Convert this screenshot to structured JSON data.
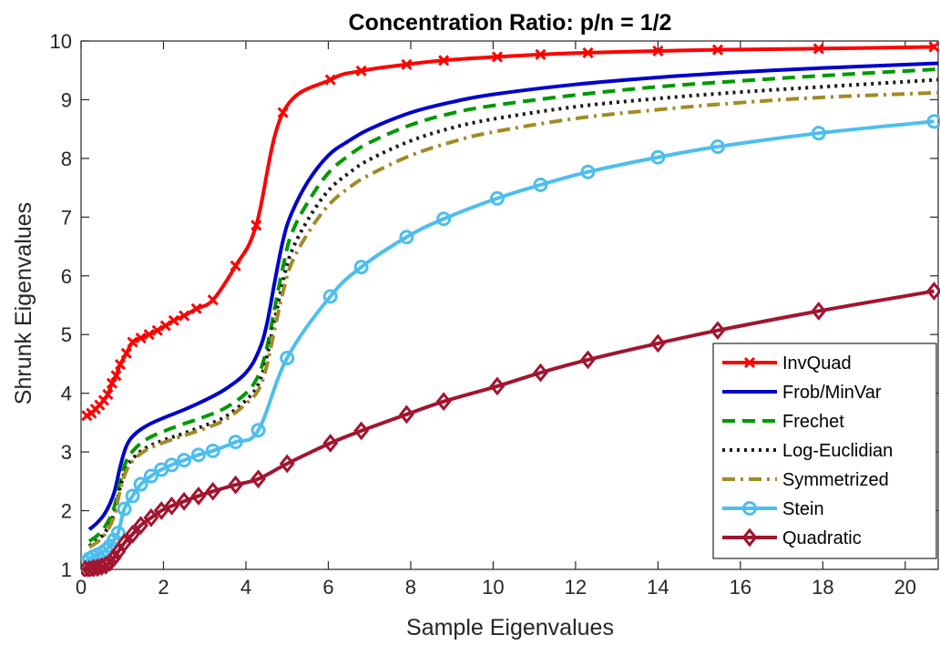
{
  "chart_data": {
    "type": "line",
    "title": "Concentration Ratio: p/n = 1/2",
    "xlabel": "Sample Eigenvalues",
    "ylabel": "Shrunk Eigenvalues",
    "xlim": [
      0,
      20.8
    ],
    "ylim": [
      1,
      10
    ],
    "xticks": [
      0,
      2,
      4,
      6,
      8,
      10,
      12,
      14,
      16,
      18,
      20
    ],
    "yticks": [
      1,
      2,
      3,
      4,
      5,
      6,
      7,
      8,
      9,
      10
    ],
    "grid": false,
    "legend_position": "bottom-right",
    "series": [
      {
        "name": "InvQuad",
        "color": "#ff0000",
        "dash": "solid",
        "marker": "x",
        "x": [
          0.14,
          0.25,
          0.35,
          0.45,
          0.55,
          0.65,
          0.75,
          0.85,
          0.95,
          1.1,
          1.25,
          1.45,
          1.65,
          1.85,
          2.05,
          2.25,
          2.5,
          2.8,
          3.2,
          3.75,
          4.25,
          4.9,
          6.05,
          6.8,
          7.9,
          8.8,
          10.1,
          11.15,
          12.3,
          14.0,
          15.45,
          17.9,
          20.7
        ],
        "y": [
          3.62,
          3.66,
          3.73,
          3.8,
          3.88,
          3.98,
          4.17,
          4.3,
          4.49,
          4.68,
          4.87,
          4.94,
          5.0,
          5.07,
          5.15,
          5.24,
          5.32,
          5.44,
          5.59,
          6.17,
          6.86,
          8.78,
          9.34,
          9.49,
          9.6,
          9.67,
          9.73,
          9.77,
          9.8,
          9.83,
          9.85,
          9.87,
          9.9
        ]
      },
      {
        "name": "Frob/MinVar",
        "color": "#0000cc",
        "dash": "solid",
        "marker": "none",
        "x": [
          0.2,
          0.4,
          0.6,
          0.8,
          0.95,
          1.1,
          1.3,
          1.6,
          2.0,
          2.5,
          3.0,
          3.5,
          4.0,
          4.3,
          4.5,
          4.7,
          4.9,
          5.1,
          5.5,
          6.0,
          6.5,
          7.0,
          8.0,
          9.0,
          10.0,
          12.0,
          14.0,
          16.0,
          18.0,
          20.8
        ],
        "y": [
          1.68,
          1.8,
          1.98,
          2.3,
          2.75,
          3.1,
          3.3,
          3.45,
          3.58,
          3.72,
          3.88,
          4.07,
          4.35,
          4.7,
          5.15,
          5.9,
          6.6,
          7.05,
          7.6,
          8.05,
          8.3,
          8.5,
          8.78,
          8.96,
          9.09,
          9.26,
          9.38,
          9.47,
          9.54,
          9.62
        ]
      },
      {
        "name": "Frechet",
        "color": "#009900",
        "dash": "dashed",
        "marker": "none",
        "x": [
          0.2,
          0.4,
          0.6,
          0.8,
          0.95,
          1.1,
          1.3,
          1.6,
          2.0,
          2.5,
          3.0,
          3.5,
          4.0,
          4.3,
          4.5,
          4.7,
          4.9,
          5.1,
          5.5,
          6.0,
          6.5,
          7.0,
          8.0,
          9.0,
          10.0,
          12.0,
          14.0,
          16.0,
          18.0,
          20.8
        ],
        "y": [
          1.48,
          1.58,
          1.75,
          2.05,
          2.5,
          2.85,
          3.05,
          3.22,
          3.35,
          3.48,
          3.6,
          3.75,
          4.0,
          4.3,
          4.75,
          5.45,
          6.15,
          6.7,
          7.25,
          7.75,
          8.05,
          8.27,
          8.57,
          8.77,
          8.9,
          9.08,
          9.22,
          9.32,
          9.41,
          9.52
        ]
      },
      {
        "name": "Log-Euclidian",
        "color": "#1a1a1a",
        "dash": "dotted",
        "marker": "none",
        "x": [
          0.2,
          0.4,
          0.6,
          0.8,
          0.95,
          1.1,
          1.3,
          1.6,
          2.0,
          2.5,
          3.0,
          3.5,
          4.0,
          4.3,
          4.5,
          4.7,
          4.9,
          5.1,
          5.5,
          6.0,
          6.5,
          7.0,
          8.0,
          9.0,
          10.0,
          12.0,
          14.0,
          16.0,
          18.0,
          20.8
        ],
        "y": [
          1.4,
          1.5,
          1.65,
          1.95,
          2.4,
          2.72,
          2.92,
          3.08,
          3.2,
          3.32,
          3.45,
          3.6,
          3.88,
          4.15,
          4.6,
          5.25,
          5.9,
          6.4,
          6.95,
          7.45,
          7.75,
          7.98,
          8.3,
          8.52,
          8.67,
          8.88,
          9.02,
          9.13,
          9.22,
          9.34
        ]
      },
      {
        "name": "Symmetrized",
        "color": "#a08b25",
        "dash": "dashdot",
        "marker": "none",
        "x": [
          0.2,
          0.4,
          0.6,
          0.8,
          0.95,
          1.1,
          1.3,
          1.6,
          2.0,
          2.5,
          3.0,
          3.5,
          4.0,
          4.3,
          4.5,
          4.7,
          4.9,
          5.1,
          5.5,
          6.0,
          6.5,
          7.0,
          8.0,
          9.0,
          10.0,
          12.0,
          14.0,
          16.0,
          18.0,
          20.8
        ],
        "y": [
          1.38,
          1.47,
          1.62,
          1.9,
          2.35,
          2.68,
          2.88,
          3.04,
          3.16,
          3.28,
          3.4,
          3.55,
          3.82,
          4.05,
          4.45,
          5.1,
          5.72,
          6.2,
          6.72,
          7.2,
          7.5,
          7.72,
          8.05,
          8.28,
          8.45,
          8.68,
          8.83,
          8.95,
          9.04,
          9.12
        ]
      },
      {
        "name": "Stein",
        "color": "#4dbeee",
        "dash": "solid",
        "marker": "o",
        "x": [
          0.1,
          0.2,
          0.3,
          0.4,
          0.5,
          0.6,
          0.7,
          0.8,
          0.9,
          1.05,
          1.25,
          1.45,
          1.7,
          1.95,
          2.2,
          2.5,
          2.85,
          3.2,
          3.75,
          4.3,
          5.0,
          6.05,
          6.8,
          7.9,
          8.8,
          10.1,
          11.15,
          12.3,
          14.0,
          15.45,
          17.9,
          20.7
        ],
        "y": [
          1.12,
          1.18,
          1.22,
          1.25,
          1.28,
          1.33,
          1.4,
          1.5,
          1.62,
          2.03,
          2.25,
          2.45,
          2.59,
          2.7,
          2.78,
          2.86,
          2.95,
          3.02,
          3.17,
          3.37,
          4.6,
          5.65,
          6.15,
          6.66,
          6.97,
          7.32,
          7.55,
          7.77,
          8.02,
          8.2,
          8.43,
          8.63
        ]
      },
      {
        "name": "Quadratic",
        "color": "#a2142f",
        "dash": "solid",
        "marker": "diamond",
        "x": [
          0.1,
          0.2,
          0.3,
          0.4,
          0.5,
          0.6,
          0.7,
          0.8,
          0.9,
          1.05,
          1.25,
          1.45,
          1.7,
          1.95,
          2.2,
          2.5,
          2.85,
          3.2,
          3.75,
          4.3,
          5.0,
          6.05,
          6.8,
          7.9,
          8.8,
          10.1,
          11.15,
          12.3,
          14.0,
          15.45,
          17.9,
          20.7
        ],
        "y": [
          1.0,
          1.0,
          1.02,
          1.03,
          1.05,
          1.07,
          1.12,
          1.2,
          1.3,
          1.45,
          1.6,
          1.75,
          1.88,
          2.0,
          2.08,
          2.16,
          2.25,
          2.33,
          2.44,
          2.54,
          2.8,
          3.15,
          3.36,
          3.64,
          3.86,
          4.12,
          4.35,
          4.57,
          4.85,
          5.07,
          5.4,
          5.74
        ]
      }
    ]
  }
}
